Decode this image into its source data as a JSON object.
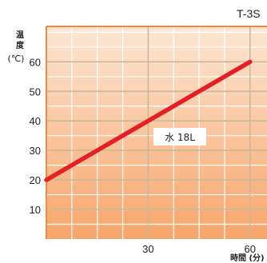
{
  "chart_data": {
    "type": "line",
    "title": "T-3S",
    "ylabel_chars": [
      "温",
      "度"
    ],
    "yunit": "(℃)",
    "xlabel": "時間 (分)",
    "xlim": [
      0,
      65
    ],
    "ylim": [
      0,
      72
    ],
    "yticks": [
      10,
      20,
      30,
      40,
      50,
      60
    ],
    "xticks": [
      30,
      60
    ],
    "xgrid_step": 7.5,
    "ygrid_step": 5,
    "grid": true,
    "series": [
      {
        "name": "水 18L",
        "color": "#e41f25",
        "x": [
          0,
          60
        ],
        "y": [
          20,
          60
        ]
      }
    ],
    "colors": {
      "background_top": "#fde6d3",
      "background_bottom": "#f7a56a",
      "grid_minor": "#ffffff",
      "grid_major": "#c8b89a",
      "frame": "#ee8a44",
      "text": "#222222",
      "line": "#e41f25"
    }
  }
}
